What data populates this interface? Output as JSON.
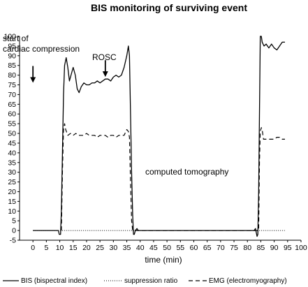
{
  "chart_data": {
    "type": "line",
    "title": "BIS monitoring of surviving event",
    "xlabel": "time (min)",
    "ylabel": "",
    "xlim": [
      -5,
      100
    ],
    "ylim": [
      -5,
      100
    ],
    "x_ticks": [
      0,
      5,
      10,
      15,
      20,
      25,
      30,
      35,
      40,
      45,
      50,
      55,
      60,
      65,
      70,
      75,
      80,
      85,
      90,
      95,
      100
    ],
    "y_ticks": [
      -5,
      0,
      5,
      10,
      15,
      20,
      25,
      30,
      35,
      40,
      45,
      50,
      55,
      60,
      65,
      70,
      75,
      80,
      85,
      90,
      95,
      100
    ],
    "grid": false,
    "legend_position": "bottom",
    "series": [
      {
        "name": "BIS (bispectral index)",
        "style": "solid",
        "points": [
          [
            0,
            0
          ],
          [
            9.5,
            0
          ],
          [
            9.8,
            -2
          ],
          [
            10.3,
            -2
          ],
          [
            10.6,
            10
          ],
          [
            11,
            40
          ],
          [
            11.4,
            70
          ],
          [
            11.8,
            85
          ],
          [
            12.4,
            89
          ],
          [
            13,
            84
          ],
          [
            13.6,
            77
          ],
          [
            14.2,
            80
          ],
          [
            15,
            84
          ],
          [
            15.8,
            80
          ],
          [
            16.5,
            73
          ],
          [
            17.2,
            71
          ],
          [
            18,
            74
          ],
          [
            19,
            76
          ],
          [
            20,
            75
          ],
          [
            21,
            75
          ],
          [
            22,
            76
          ],
          [
            23,
            76
          ],
          [
            24,
            77
          ],
          [
            25,
            76
          ],
          [
            26,
            77
          ],
          [
            27,
            78
          ],
          [
            28,
            78
          ],
          [
            29,
            77
          ],
          [
            30,
            79
          ],
          [
            31,
            80
          ],
          [
            32,
            79
          ],
          [
            33,
            80
          ],
          [
            34,
            84
          ],
          [
            35,
            90
          ],
          [
            35.6,
            95
          ],
          [
            36,
            90
          ],
          [
            36.4,
            60
          ],
          [
            36.8,
            30
          ],
          [
            37.2,
            8
          ],
          [
            37.5,
            -2
          ],
          [
            37.8,
            -2
          ],
          [
            38.2,
            0
          ],
          [
            38.8,
            1
          ],
          [
            39.3,
            0
          ],
          [
            82.5,
            0
          ],
          [
            83,
            1
          ],
          [
            83.3,
            -1
          ],
          [
            83.6,
            -3
          ],
          [
            83.9,
            -2
          ],
          [
            84.2,
            20
          ],
          [
            84.5,
            60
          ],
          [
            84.8,
            100
          ],
          [
            85.2,
            100
          ],
          [
            85.5,
            97
          ],
          [
            86.2,
            95
          ],
          [
            87,
            96
          ],
          [
            88,
            94
          ],
          [
            89,
            96
          ],
          [
            90,
            94
          ],
          [
            91,
            93
          ],
          [
            92,
            95
          ],
          [
            93,
            97
          ],
          [
            94,
            97
          ]
        ]
      },
      {
        "name": "suppression ratio",
        "style": "dotted",
        "points": [
          [
            0,
            0
          ],
          [
            94,
            0
          ]
        ]
      },
      {
        "name": "EMG (electromyography)",
        "style": "dashed",
        "points": [
          [
            10.6,
            0
          ],
          [
            11,
            30
          ],
          [
            11.4,
            52
          ],
          [
            11.8,
            55
          ],
          [
            12.2,
            52
          ],
          [
            13,
            49
          ],
          [
            14,
            50
          ],
          [
            15,
            49
          ],
          [
            16,
            50
          ],
          [
            17,
            49
          ],
          [
            18,
            49
          ],
          [
            19,
            49
          ],
          [
            20,
            50
          ],
          [
            21,
            49
          ],
          [
            22,
            49
          ],
          [
            23,
            49
          ],
          [
            24,
            48
          ],
          [
            25,
            49
          ],
          [
            26,
            49
          ],
          [
            27,
            49
          ],
          [
            28,
            48
          ],
          [
            29,
            49
          ],
          [
            30,
            49
          ],
          [
            31,
            48
          ],
          [
            32,
            49
          ],
          [
            33,
            49
          ],
          [
            34,
            49
          ],
          [
            35,
            52
          ],
          [
            35.6,
            51
          ],
          [
            36,
            48
          ],
          [
            36.4,
            25
          ],
          [
            36.8,
            5
          ],
          [
            37.2,
            0
          ],
          [
            84.2,
            0
          ],
          [
            84.5,
            35
          ],
          [
            84.8,
            51
          ],
          [
            85.2,
            53
          ],
          [
            85.5,
            52
          ],
          [
            86,
            47
          ],
          [
            87,
            47
          ],
          [
            88,
            47
          ],
          [
            89,
            47
          ],
          [
            90,
            47
          ],
          [
            91,
            48
          ],
          [
            92,
            48
          ],
          [
            93,
            47
          ],
          [
            94,
            47
          ]
        ]
      }
    ],
    "annotations": [
      {
        "text": "start of",
        "arrow_at": [
          0,
          75
        ]
      },
      {
        "text": "cardiac compression"
      },
      {
        "text": "ROSC",
        "arrow_at": [
          27,
          78
        ]
      },
      {
        "text": "computed tomography"
      }
    ]
  }
}
